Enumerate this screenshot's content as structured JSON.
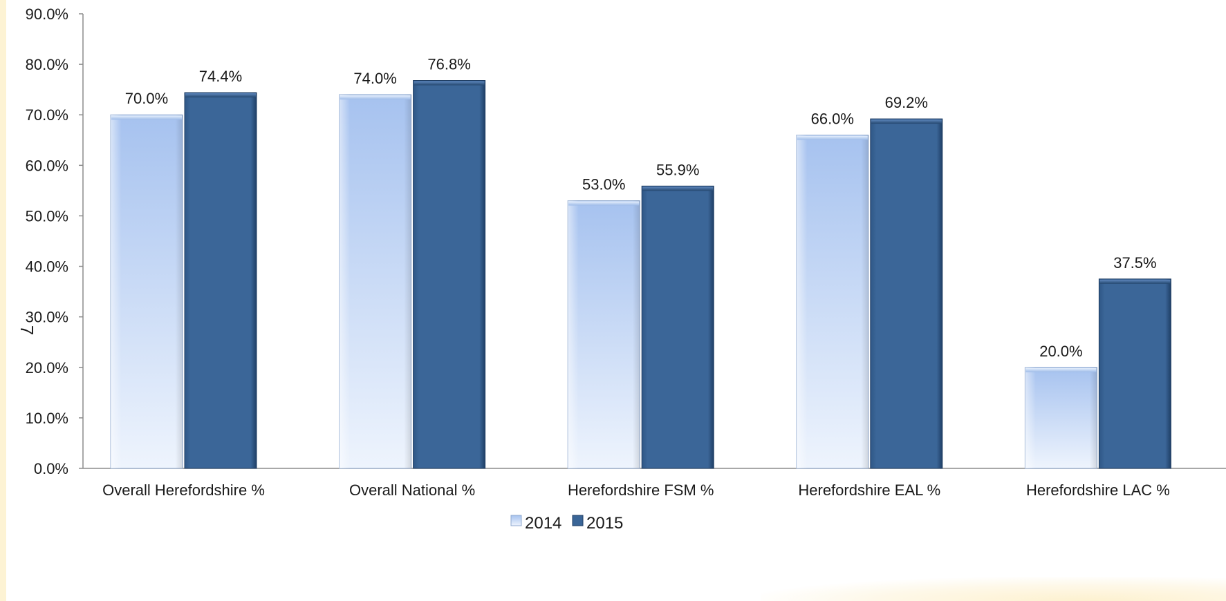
{
  "page_number": "7",
  "chart_data": {
    "type": "bar",
    "categories": [
      "Overall Herefordshire %",
      "Overall National %",
      "Herefordshire FSM %",
      "Herefordshire EAL %",
      "Herefordshire LAC %"
    ],
    "series": [
      {
        "name": "2014",
        "values": [
          70.0,
          74.0,
          53.0,
          66.0,
          20.0
        ],
        "labels": [
          "70.0%",
          "74.0%",
          "53.0%",
          "66.0%",
          "20.0%"
        ],
        "color": "#a9c4ee"
      },
      {
        "name": "2015",
        "values": [
          74.4,
          76.8,
          55.9,
          69.2,
          37.5
        ],
        "labels": [
          "74.4%",
          "76.8%",
          "55.9%",
          "69.2%",
          "37.5%"
        ],
        "color": "#3a6597"
      }
    ],
    "yticks": [
      "0.0%",
      "10.0%",
      "20.0%",
      "30.0%",
      "40.0%",
      "50.0%",
      "60.0%",
      "70.0%",
      "80.0%",
      "90.0%"
    ],
    "ylim": [
      0,
      90
    ],
    "title": "",
    "xlabel": "",
    "ylabel": "",
    "grid": false,
    "legend_position": "bottom-center"
  }
}
